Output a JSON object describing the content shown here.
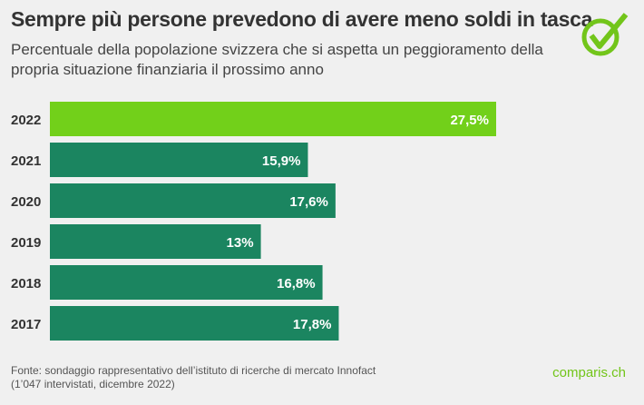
{
  "header": {
    "title": "Sempre più persone prevedono di avere meno soldi in tasca",
    "subtitle": "Percentuale della popolazione svizzera che si aspetta un peggioramento della propria situazione finanziaria il prossimo anno",
    "icon": "check-circle-icon"
  },
  "chart_data": {
    "type": "bar",
    "orientation": "horizontal",
    "categories": [
      "2022",
      "2021",
      "2020",
      "2019",
      "2018",
      "2017"
    ],
    "values": [
      27.5,
      15.9,
      17.6,
      13,
      16.8,
      17.8
    ],
    "labels": [
      "27,5%",
      "15,9%",
      "17,6%",
      "13%",
      "16,8%",
      "17,8%"
    ],
    "highlight_color": "#72d01a",
    "bar_color": "#1b8560",
    "xlim": [
      0,
      30
    ],
    "grid": false
  },
  "footer": {
    "source_line1": "Fonte: sondaggio rappresentativo dell’istituto di ricerche di mercato Innofact",
    "source_line2": "(1’047 intervistati, dicembre 2022)",
    "logo": "comparis.ch"
  }
}
